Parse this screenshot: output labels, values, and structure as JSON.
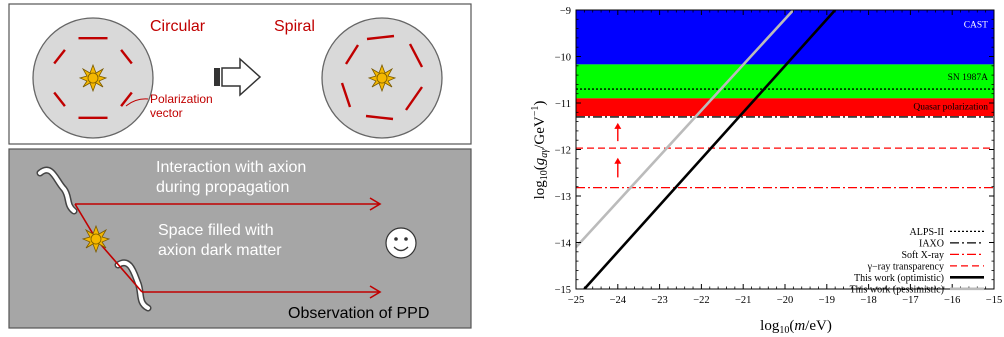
{
  "left_figure": {
    "circular_label": "Circular",
    "spiral_label": "Spiral",
    "polarization_label_line1": "Polarization",
    "polarization_label_line2": "vector",
    "interaction_line1": "Interaction with axion",
    "interaction_line2": "during propagation",
    "space_line1": "Space filled with",
    "space_line2": "axion dark matter",
    "observation_label": "Observation of PPD",
    "colors": {
      "accent_red": "#c00000",
      "panel_gray": "#a6a6a6",
      "disk_gray": "#d9d9d9",
      "star_yellow": "#f5b800"
    },
    "icons": [
      "sun-icon",
      "right-arrow-icon",
      "smiley-icon",
      "light-path-squiggle"
    ]
  },
  "chart_data": {
    "type": "exclusion-plot",
    "xlabel": "log10(m/eV)",
    "ylabel": "log10(g_aγ/GeV^-1)",
    "xlim": [
      -25,
      -15
    ],
    "ylim": [
      -15,
      -9
    ],
    "x_ticks": [
      "−25",
      "−24",
      "−23",
      "−22",
      "−21",
      "−20",
      "−19",
      "−18",
      "−17",
      "−16",
      "−15"
    ],
    "y_ticks": [
      "−15",
      "−14",
      "−13",
      "−12",
      "−11",
      "−10",
      "−9"
    ],
    "bands": [
      {
        "name": "CAST",
        "y": [
          -10.17,
          -9.0
        ],
        "color": "#0000ff"
      },
      {
        "name": "SN 1987A",
        "y": [
          -10.9,
          -10.17
        ],
        "color": "#00ff00"
      },
      {
        "name": "Quasar polarization",
        "y": [
          -11.28,
          -10.9
        ],
        "color": "#ff0000"
      }
    ],
    "hlines": [
      {
        "name": "ALPS-II",
        "y": -10.7,
        "style": "dotted",
        "color": "#000000"
      },
      {
        "name": "IAXO",
        "y": -11.3,
        "style": "dashdot",
        "color": "#000000"
      },
      {
        "name": "Soft X-ray",
        "y": -12.82,
        "style": "dashdot",
        "color": "#ff0000"
      },
      {
        "name": "γ−ray transparency",
        "y": -11.97,
        "style": "dashed",
        "color": "#ff0000"
      }
    ],
    "arrows": [
      {
        "x": -24,
        "y_from": -12.6,
        "y_to": -12.2,
        "color": "#ff0000"
      },
      {
        "x": -24,
        "y_from": -11.82,
        "y_to": -11.45,
        "color": "#ff0000"
      }
    ],
    "lines": [
      {
        "name": "This work (optimistic)",
        "color": "#000000",
        "x": [
          -24.8,
          -18.8
        ],
        "y": [
          -15.0,
          -9.0
        ]
      },
      {
        "name": "This work (pessimistic)",
        "color": "#bbbbbb",
        "x": [
          -25.0,
          -19.8
        ],
        "y": [
          -14.1,
          -9.0
        ]
      }
    ],
    "band_labels": [
      "CAST",
      "SN 1987A",
      "Quasar polarization"
    ],
    "legend": [
      {
        "label": "ALPS-II",
        "style": "dotted",
        "color": "#000000"
      },
      {
        "label": "IAXO",
        "style": "dashdot",
        "color": "#000000"
      },
      {
        "label": "Soft X-ray",
        "style": "dashdot",
        "color": "#ff0000"
      },
      {
        "label": "γ−ray transparency",
        "style": "dashed",
        "color": "#ff0000"
      },
      {
        "label": "This work (optimistic)",
        "style": "solid-thick",
        "color": "#000000"
      },
      {
        "label": "This work (pessimistic)",
        "style": "solid-thick",
        "color": "#bbbbbb"
      }
    ],
    "legend_position": "bottom-right"
  }
}
